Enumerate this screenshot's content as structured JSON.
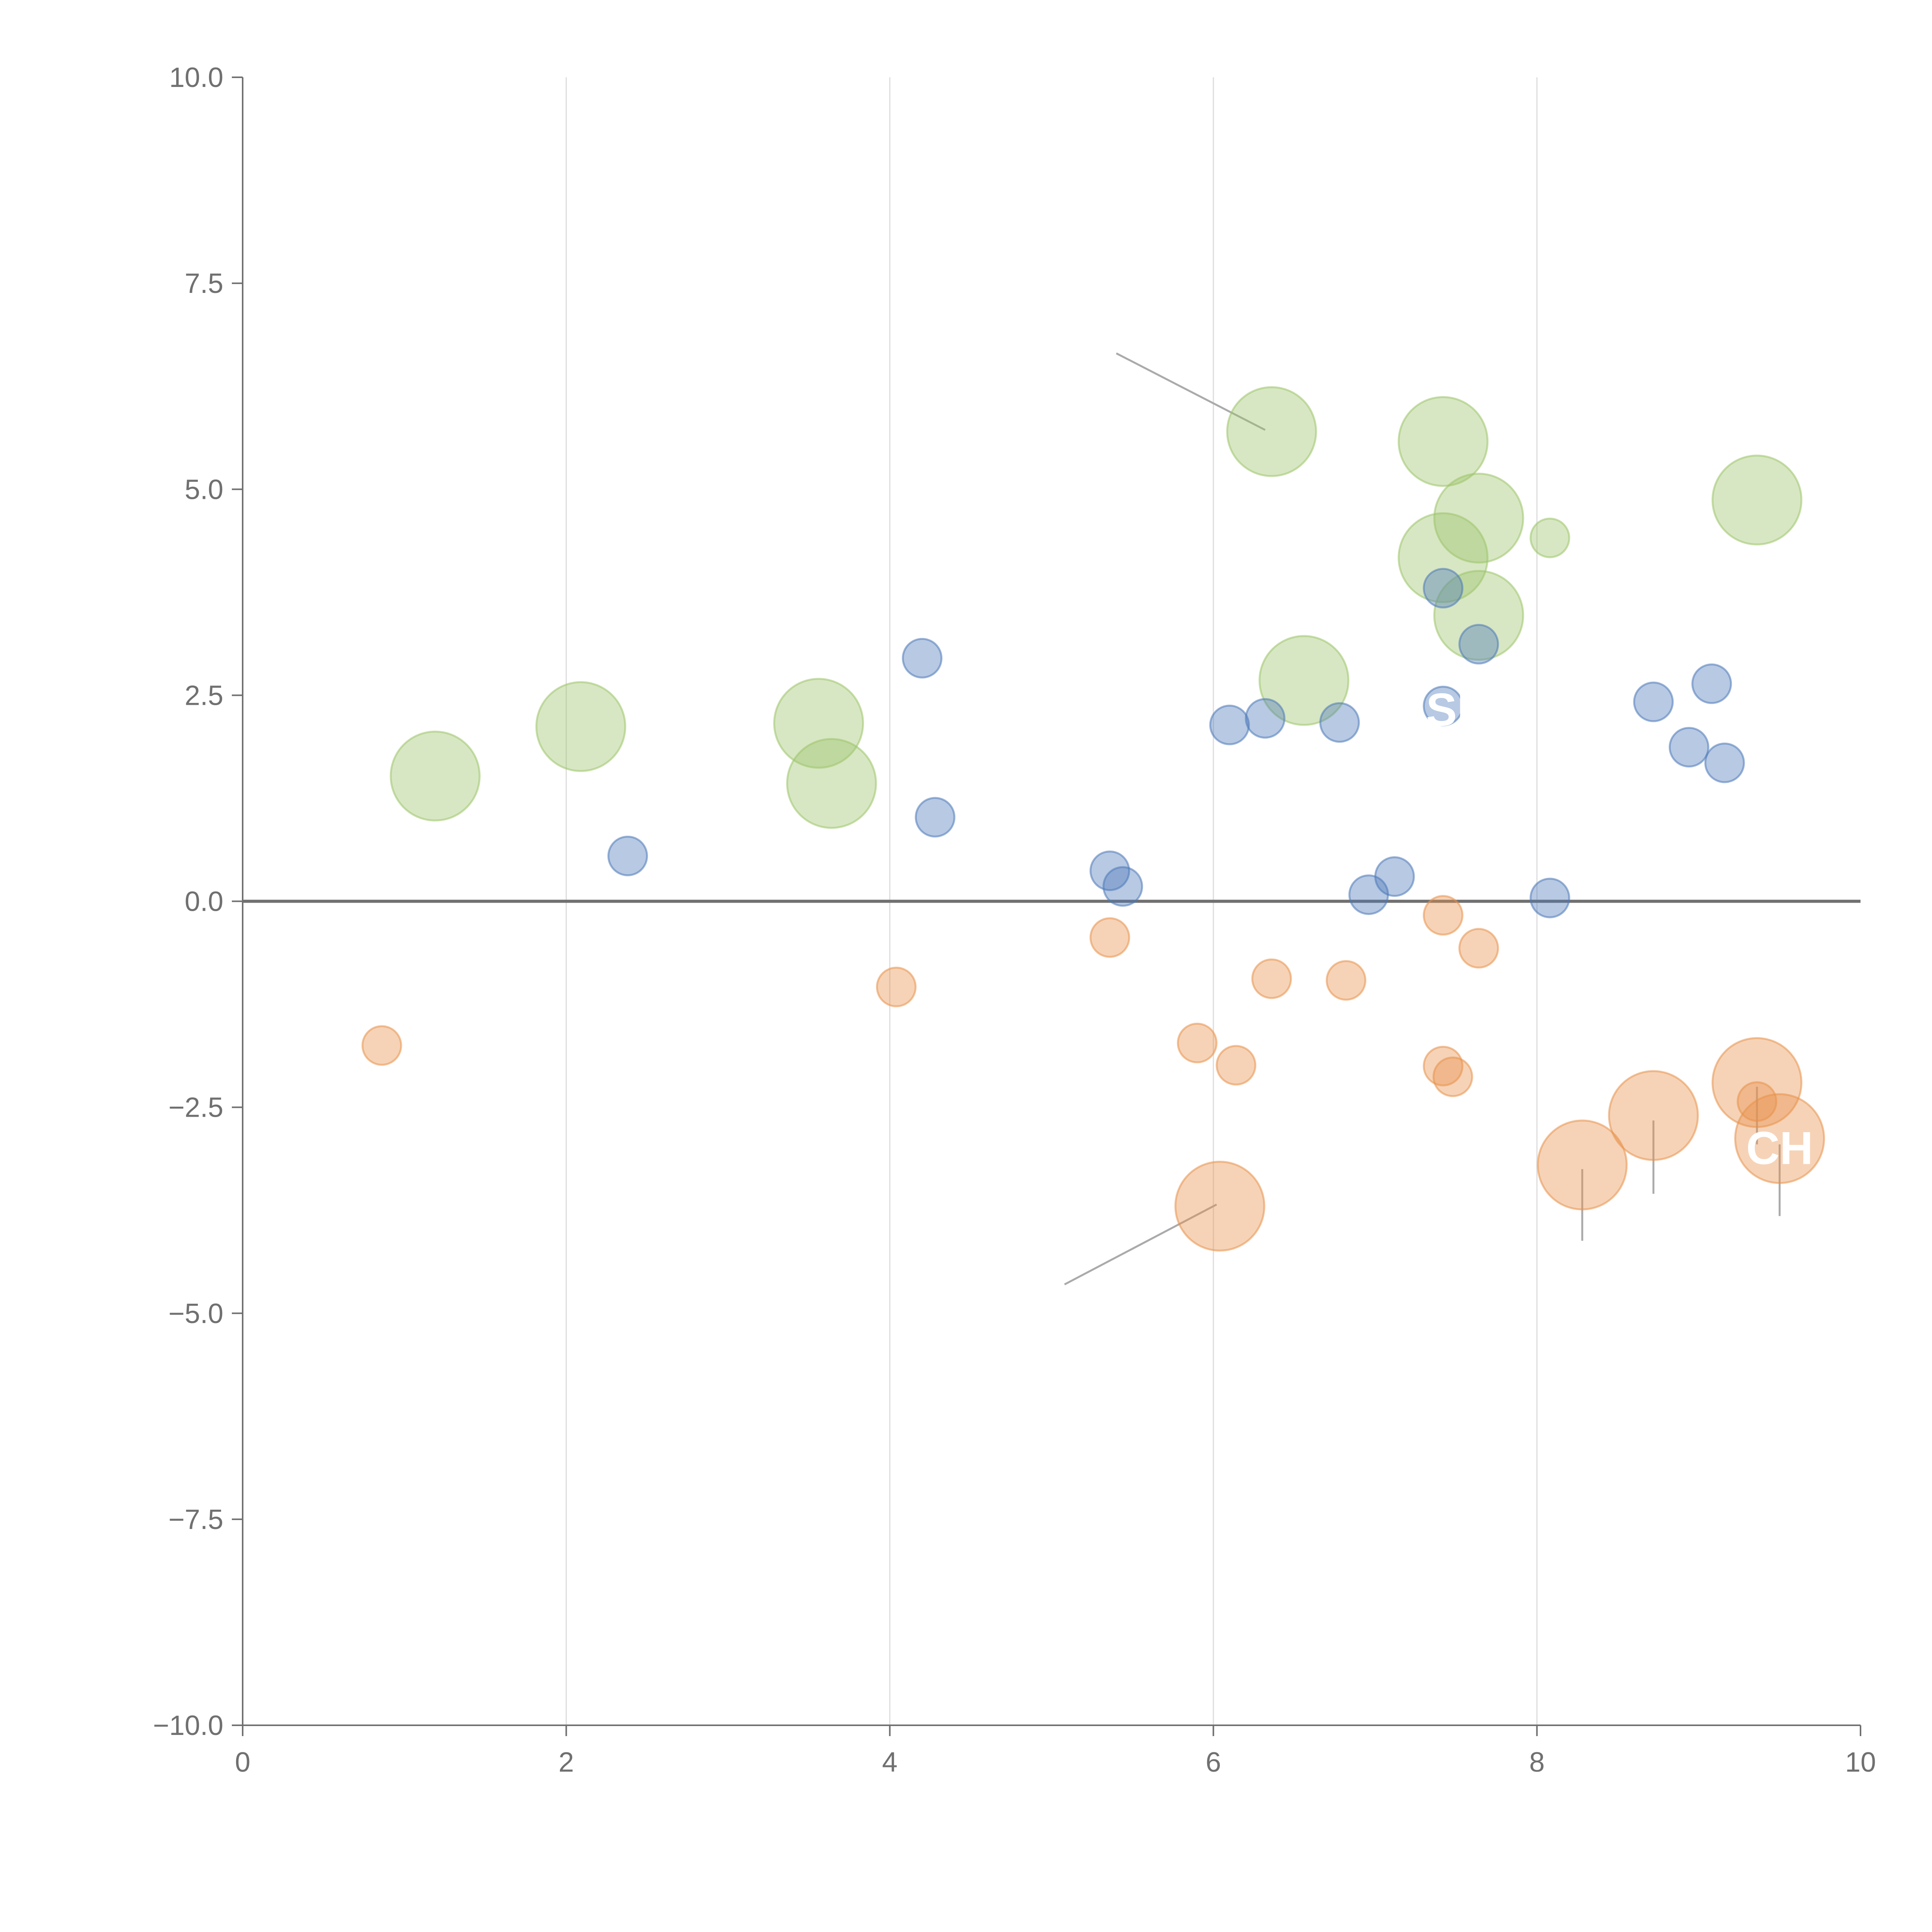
{
  "chart_data": {
    "type": "scatter",
    "title": "",
    "xlabel": "",
    "ylabel": "",
    "xlim": [
      0,
      10
    ],
    "ylim": [
      -10,
      10
    ],
    "x_ticks": [
      {
        "value": 0,
        "label": "0"
      },
      {
        "value": 2,
        "label": "2"
      },
      {
        "value": 4,
        "label": "4"
      },
      {
        "value": 6,
        "label": "6"
      },
      {
        "value": 8,
        "label": "8"
      },
      {
        "value": 10,
        "label": "10"
      }
    ],
    "y_ticks": [
      {
        "value": 10,
        "label": "10.0"
      },
      {
        "value": 7.5,
        "label": "7.5"
      },
      {
        "value": 5,
        "label": "5.0"
      },
      {
        "value": 2.5,
        "label": "2.5"
      },
      {
        "value": 0,
        "label": "0.0"
      },
      {
        "value": -2.5,
        "label": "−2.5"
      },
      {
        "value": -5,
        "label": "−5.0"
      },
      {
        "value": -7.5,
        "label": "−7.5"
      },
      {
        "value": -10,
        "label": "−10.0"
      }
    ],
    "vertical_gridlines": [
      2,
      4,
      6,
      8
    ],
    "zero_line": 0,
    "legend": "none",
    "series": [
      {
        "name": "blue",
        "color": "#4c78b8",
        "points": [
          {
            "x": 2.38,
            "y": 0.55,
            "size": 1
          },
          {
            "x": 4.2,
            "y": 2.95,
            "size": 1
          },
          {
            "x": 4.28,
            "y": 1.02,
            "size": 1
          },
          {
            "x": 5.36,
            "y": 0.37,
            "size": 1
          },
          {
            "x": 5.44,
            "y": 0.18,
            "size": 1
          },
          {
            "x": 6.1,
            "y": 2.14,
            "size": 1
          },
          {
            "x": 6.32,
            "y": 2.22,
            "size": 1
          },
          {
            "x": 6.78,
            "y": 2.17,
            "size": 1
          },
          {
            "x": 6.96,
            "y": 0.08,
            "size": 1
          },
          {
            "x": 7.12,
            "y": 0.3,
            "size": 1
          },
          {
            "x": 7.42,
            "y": 2.37,
            "size": 1
          },
          {
            "x": 7.42,
            "y": 3.8,
            "size": 1
          },
          {
            "x": 7.64,
            "y": 3.12,
            "size": 1
          },
          {
            "x": 8.08,
            "y": 0.04,
            "size": 1
          },
          {
            "x": 8.72,
            "y": 2.42,
            "size": 1
          },
          {
            "x": 8.94,
            "y": 1.87,
            "size": 1
          },
          {
            "x": 9.08,
            "y": 2.64,
            "size": 1
          },
          {
            "x": 9.16,
            "y": 1.68,
            "size": 1
          }
        ]
      },
      {
        "name": "orange",
        "color": "#e8914a",
        "points": [
          {
            "x": 0.86,
            "y": -1.75,
            "size": 1
          },
          {
            "x": 4.04,
            "y": -1.04,
            "size": 1
          },
          {
            "x": 5.36,
            "y": -0.44,
            "size": 1
          },
          {
            "x": 5.9,
            "y": -1.72,
            "size": 1
          },
          {
            "x": 6.14,
            "y": -1.99,
            "size": 1
          },
          {
            "x": 6.36,
            "y": -0.94,
            "size": 1
          },
          {
            "x": 6.82,
            "y": -0.96,
            "size": 1
          },
          {
            "x": 7.42,
            "y": -0.17,
            "size": 1
          },
          {
            "x": 7.42,
            "y": -2.0,
            "size": 1
          },
          {
            "x": 7.48,
            "y": -2.13,
            "size": 1
          },
          {
            "x": 7.64,
            "y": -0.57,
            "size": 1
          },
          {
            "x": 9.36,
            "y": -2.43,
            "size": 1
          },
          {
            "x": 6.04,
            "y": -3.7,
            "size": 2.3
          },
          {
            "x": 8.28,
            "y": -3.2,
            "size": 2.3
          },
          {
            "x": 8.72,
            "y": -2.6,
            "size": 2.3
          },
          {
            "x": 9.36,
            "y": -2.2,
            "size": 2.3
          },
          {
            "x": 9.5,
            "y": -2.88,
            "size": 2.3
          }
        ]
      },
      {
        "name": "green",
        "color": "#9cc46a",
        "points": [
          {
            "x": 1.19,
            "y": 1.52,
            "size": 2.3
          },
          {
            "x": 2.09,
            "y": 2.12,
            "size": 2.3
          },
          {
            "x": 3.56,
            "y": 2.16,
            "size": 2.3
          },
          {
            "x": 3.64,
            "y": 1.43,
            "size": 2.3
          },
          {
            "x": 6.36,
            "y": 5.7,
            "size": 2.3
          },
          {
            "x": 6.56,
            "y": 2.68,
            "size": 2.3
          },
          {
            "x": 7.42,
            "y": 5.58,
            "size": 2.3
          },
          {
            "x": 7.64,
            "y": 4.65,
            "size": 2.3
          },
          {
            "x": 7.42,
            "y": 4.17,
            "size": 2.3
          },
          {
            "x": 7.64,
            "y": 3.47,
            "size": 2.3
          },
          {
            "x": 8.08,
            "y": 4.41,
            "size": 1
          },
          {
            "x": 9.36,
            "y": 4.87,
            "size": 2.3
          }
        ]
      }
    ],
    "annotations": [
      {
        "text": "CH",
        "x": 9.5,
        "y": -3.0,
        "color": "#ffffff"
      },
      {
        "text": "SI",
        "x": 7.45,
        "y": 2.32,
        "color": "#ffffff"
      }
    ],
    "leader_lines": [
      {
        "from": [
          6.32,
          5.72
        ],
        "to": [
          5.4,
          6.65
        ]
      },
      {
        "from": [
          6.02,
          -3.68
        ],
        "to": [
          5.08,
          -4.65
        ]
      },
      {
        "from": [
          8.28,
          -3.25
        ],
        "to": [
          8.28,
          -4.12
        ]
      },
      {
        "from": [
          8.72,
          -2.66
        ],
        "to": [
          8.72,
          -3.55
        ]
      },
      {
        "from": [
          9.36,
          -2.25
        ],
        "to": [
          9.36,
          -2.95
        ]
      },
      {
        "from": [
          9.5,
          -2.95
        ],
        "to": [
          9.5,
          -3.82
        ]
      }
    ]
  }
}
